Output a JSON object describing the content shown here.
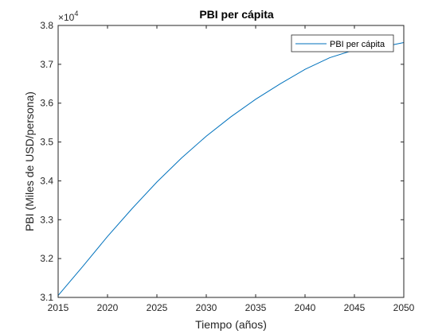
{
  "chart_data": {
    "type": "line",
    "title": "PBI per cápita",
    "xlabel": "Tiempo (años)",
    "ylabel": "PBI (Miles de USD/persona)",
    "y_exponent_label": "×10",
    "y_exponent_power": "4",
    "xlim": [
      2015,
      2050
    ],
    "ylim": [
      31000,
      38000
    ],
    "xticks": [
      2015,
      2020,
      2025,
      2030,
      2035,
      2040,
      2045,
      2050
    ],
    "xtick_labels": [
      "2015",
      "2020",
      "2025",
      "2030",
      "2035",
      "2040",
      "2045",
      "2050"
    ],
    "yticks": [
      31000,
      32000,
      33000,
      34000,
      35000,
      36000,
      37000,
      38000
    ],
    "ytick_labels": [
      "3.1",
      "3.2",
      "3.3",
      "3.4",
      "3.5",
      "3.6",
      "3.7",
      "3.8"
    ],
    "grid": false,
    "legend_position": "top-right",
    "series": [
      {
        "name": "PBI per cápita",
        "color": "#0072BD",
        "x": [
          2015,
          2017.5,
          2020,
          2022.5,
          2025,
          2027.5,
          2030,
          2032.5,
          2035,
          2037.5,
          2040,
          2042.5,
          2045,
          2047.5,
          2050
        ],
        "y": [
          31050,
          31800,
          32570,
          33290,
          33970,
          34590,
          35150,
          35650,
          36100,
          36500,
          36870,
          37170,
          37370,
          37430,
          37560
        ]
      }
    ]
  }
}
